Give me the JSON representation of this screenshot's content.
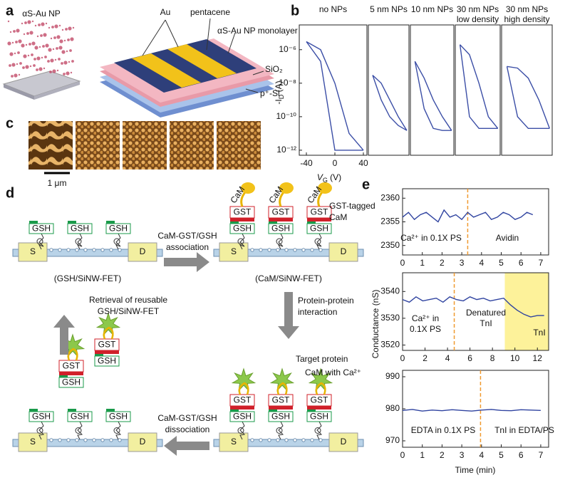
{
  "panel_a": {
    "label": "a",
    "particles_label": "αS-Au NP",
    "layers": [
      "Au",
      "pentacene",
      "αS-Au NP monolayer",
      "SiO₂",
      "p⁺-Si"
    ]
  },
  "panel_b": {
    "label": "b",
    "x_label": "V",
    "x_label_sub": "G",
    "x_label_unit": " (V)",
    "y_label": "-I",
    "y_label_sub": "D",
    "y_label_unit": " (A)"
  },
  "panel_c": {
    "label": "c",
    "scale_bar": "1 μm"
  },
  "panel_d": {
    "label": "d",
    "electrode_source": "S",
    "electrode_drain": "D",
    "gsh": "GSH",
    "gst": "GST",
    "cam": "CaM",
    "states": [
      "(GSH/SiNW-FET)",
      "(CaM/SiNW-FET)"
    ],
    "steps": [
      [
        "CaM-GST/GSH",
        "association"
      ],
      [
        "Protein-protein",
        "interaction"
      ],
      [
        "CaM-GST/GSH",
        "dissociation"
      ],
      [
        "Retrieval of reusable",
        "GSH/SiNW-FET"
      ]
    ],
    "notes": [
      [
        "GST-tagged",
        "CaM"
      ],
      [
        "Target protein",
        "CaM with Ca²⁺"
      ]
    ]
  },
  "panel_e": {
    "label": "e",
    "x_label": "Time (min)",
    "y_label": "Conductance (nS)"
  },
  "chart_data": [
    {
      "type": "line",
      "title": "no NPs",
      "log_y": true,
      "x": [
        -40,
        -20,
        0,
        20,
        40
      ],
      "xlim": [
        -50,
        45
      ],
      "ylim": [
        5e-13,
        3e-05
      ],
      "xticks": [
        -40,
        0,
        40
      ],
      "yticks": [
        {
          "value": 1e-06,
          "label": "10⁻⁶"
        },
        {
          "value": 1e-08,
          "label": "10⁻⁸"
        },
        {
          "value": 1e-10,
          "label": "10⁻¹⁰"
        },
        {
          "value": 1e-12,
          "label": "10⁻¹²"
        }
      ],
      "series": [
        {
          "color": "#3b4ea6",
          "values": [
            3e-06,
            2e-07,
            1e-12,
            1e-12,
            1e-12
          ]
        },
        {
          "color": "#3b4ea6",
          "values": [
            3e-06,
            1e-06,
            1e-08,
            1e-11,
            1e-12
          ]
        }
      ]
    },
    {
      "type": "line",
      "title": "5 nm NPs",
      "log_y": true,
      "x": [
        -40,
        -20,
        0,
        20,
        40
      ],
      "xlim": [
        -50,
        45
      ],
      "ylim": [
        5e-13,
        3e-05
      ],
      "series": [
        {
          "color": "#3b4ea6",
          "values": [
            3e-08,
            1e-09,
            1e-10,
            3e-11,
            1.5e-11
          ]
        },
        {
          "color": "#3b4ea6",
          "values": [
            3e-08,
            1e-08,
            1e-09,
            1e-10,
            1.5e-11
          ]
        }
      ]
    },
    {
      "type": "line",
      "title": "10 nm NPs",
      "log_y": true,
      "x": [
        -40,
        -20,
        0,
        20,
        40
      ],
      "xlim": [
        -50,
        45
      ],
      "ylim": [
        5e-13,
        3e-05
      ],
      "series": [
        {
          "color": "#3b4ea6",
          "values": [
            2e-07,
            3e-10,
            2e-11,
            1.5e-11,
            1.5e-11
          ]
        },
        {
          "color": "#3b4ea6",
          "values": [
            2e-07,
            2e-08,
            1e-09,
            1e-10,
            1.5e-11
          ]
        }
      ]
    },
    {
      "type": "line",
      "title": "30 nm NPs",
      "subtitle": "low density",
      "log_y": true,
      "x": [
        -40,
        -20,
        0,
        20,
        40
      ],
      "xlim": [
        -50,
        45
      ],
      "ylim": [
        5e-13,
        3e-05
      ],
      "series": [
        {
          "color": "#3b4ea6",
          "values": [
            2e-06,
            1e-10,
            2e-11,
            2e-11,
            2e-11
          ]
        },
        {
          "color": "#3b4ea6",
          "values": [
            2e-06,
            5e-07,
            1e-08,
            1e-10,
            2e-11
          ]
        }
      ]
    },
    {
      "type": "line",
      "title": "30 nm NPs",
      "subtitle": "high density",
      "log_y": true,
      "x": [
        -40,
        -20,
        0,
        20,
        40
      ],
      "xlim": [
        -50,
        45
      ],
      "ylim": [
        5e-13,
        3e-05
      ],
      "series": [
        {
          "color": "#3b4ea6",
          "values": [
            1e-07,
            1e-10,
            2e-11,
            2e-11,
            2e-11
          ]
        },
        {
          "color": "#3b4ea6",
          "values": [
            1e-07,
            8e-08,
            2e-08,
            1e-09,
            2e-11
          ]
        }
      ]
    },
    {
      "type": "line",
      "x": [
        0,
        0.3,
        0.6,
        0.9,
        1.2,
        1.5,
        1.8,
        2.1,
        2.4,
        2.7,
        3,
        3.3,
        3.6,
        3.9,
        4.2,
        4.5,
        4.8,
        5.1,
        5.4,
        5.7,
        6,
        6.3,
        6.6
      ],
      "series": [
        {
          "color": "#2f43a0",
          "values": [
            2356,
            2357,
            2355.5,
            2356.5,
            2357,
            2356,
            2355,
            2357.5,
            2356,
            2356.5,
            2355.5,
            2357,
            2356,
            2356.5,
            2357,
            2355.5,
            2356,
            2357,
            2356.5,
            2355.5,
            2356,
            2357,
            2356.5
          ]
        }
      ],
      "xlim": [
        0,
        7.4
      ],
      "ylim": [
        2348,
        2362
      ],
      "xticks": [
        0,
        1,
        2,
        3,
        4,
        5,
        6,
        7
      ],
      "yticks": [
        2350,
        2355,
        2360
      ],
      "events": [
        3.3
      ],
      "annotations": [
        [
          "Ca²⁺ in 0.1X PS"
        ],
        [
          "Avidin"
        ]
      ]
    },
    {
      "type": "line",
      "x": [
        0,
        0.6,
        1.2,
        1.8,
        2.4,
        3,
        3.6,
        4.2,
        4.8,
        5.4,
        6,
        6.6,
        7.2,
        7.8,
        8.4,
        9,
        9.6,
        10.2,
        10.8,
        11.4,
        12,
        12.6
      ],
      "series": [
        {
          "color": "#2f43a0",
          "values": [
            3537,
            3536,
            3538,
            3536.5,
            3537,
            3537.5,
            3536,
            3538,
            3537,
            3536.5,
            3538,
            3537,
            3537.5,
            3536.5,
            3537,
            3537.5,
            3535,
            3533,
            3531.5,
            3530.5,
            3531,
            3531
          ]
        }
      ],
      "xlim": [
        0,
        13
      ],
      "ylim": [
        3518,
        3547
      ],
      "xticks": [
        0,
        2,
        4,
        6,
        8,
        10,
        12
      ],
      "yticks": [
        3520,
        3530,
        3540
      ],
      "events": [
        4.6
      ],
      "highlight": {
        "range": [
          9.1,
          13
        ],
        "color": "#fdf29a"
      },
      "annotations": [
        [
          "Ca²⁺ in",
          "0.1X PS"
        ],
        [
          "Denatured",
          "TnI"
        ],
        [
          "TnI"
        ]
      ]
    },
    {
      "type": "line",
      "x": [
        0,
        0.5,
        1,
        1.5,
        2,
        2.5,
        3,
        3.5,
        4,
        4.5,
        5,
        5.5,
        6,
        6.5,
        7
      ],
      "series": [
        {
          "color": "#2f43a0",
          "values": [
            979.5,
            979.8,
            979.3,
            979.6,
            979.4,
            979.7,
            979.5,
            979.3,
            979.6,
            979.8,
            979.5,
            979.4,
            979.7,
            979.6,
            979.5
          ]
        }
      ],
      "xlim": [
        0,
        7.4
      ],
      "ylim": [
        968,
        992
      ],
      "xticks": [
        0,
        1,
        2,
        3,
        4,
        5,
        6,
        7
      ],
      "yticks": [
        970,
        980,
        990
      ],
      "events": [
        3.95
      ],
      "annotations": [
        [
          "EDTA in 0.1X PS"
        ],
        [
          "TnI in EDTA/PS"
        ]
      ]
    }
  ]
}
